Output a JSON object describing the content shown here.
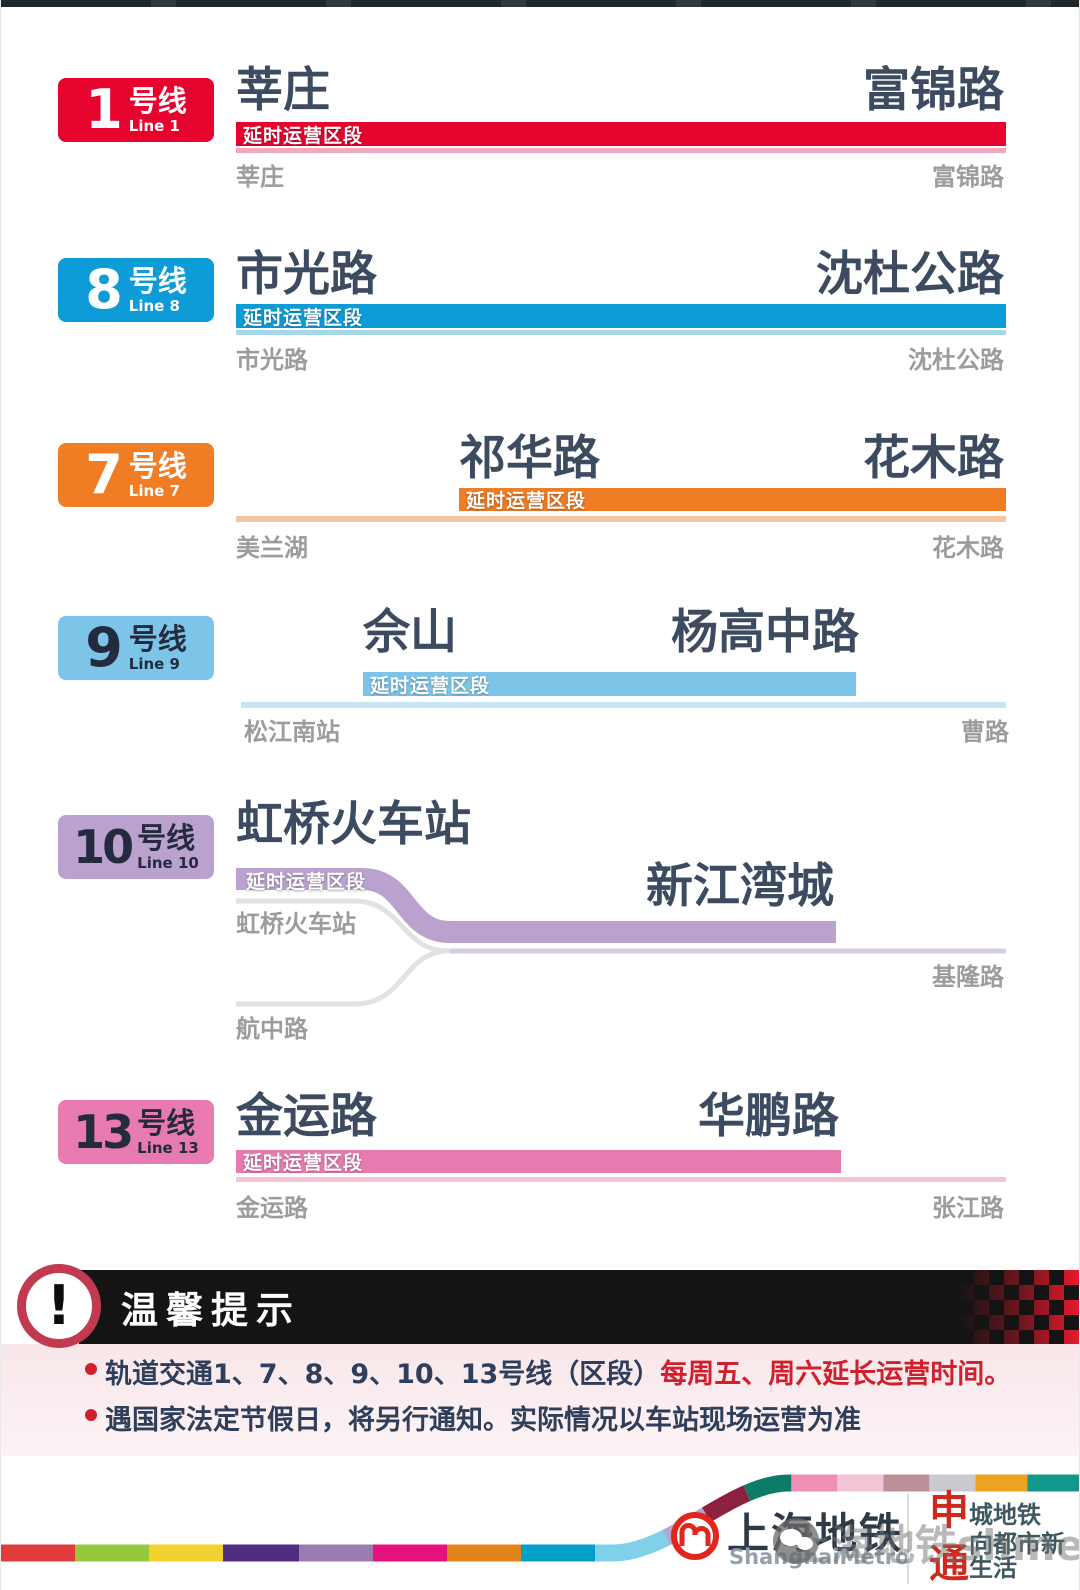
{
  "labels": {
    "section": "延时运营区段"
  },
  "lines": [
    {
      "number": "1",
      "suffix_cn": "号线",
      "name_en": "Line 1",
      "color": "#e6032e",
      "light_color": "#f2a9bc",
      "badge_text": "#ffffff",
      "section_start": "莘庄",
      "section_end": "富锦路",
      "route_start": "莘庄",
      "route_end": "富锦路"
    },
    {
      "number": "8",
      "suffix_cn": "号线",
      "name_en": "Line 8",
      "color": "#0d9cd8",
      "light_color": "#a6d8ec",
      "badge_text": "#ffffff",
      "section_start": "市光路",
      "section_end": "沈杜公路",
      "route_start": "市光路",
      "route_end": "沈杜公路"
    },
    {
      "number": "7",
      "suffix_cn": "号线",
      "name_en": "Line 7",
      "color": "#f07c24",
      "light_color": "#f3c5a1",
      "badge_text": "#ffffff",
      "section_start": "祁华路",
      "section_end": "花木路",
      "route_start": "美兰湖",
      "route_end": "花木路"
    },
    {
      "number": "9",
      "suffix_cn": "号线",
      "name_en": "Line 9",
      "color": "#7cc5e8",
      "light_color": "#c7e5f2",
      "badge_text": "#252b3f",
      "section_start": "佘山",
      "section_end": "杨高中路",
      "route_start": "松江南站",
      "route_end": "曹路"
    },
    {
      "number": "10",
      "suffix_cn": "号线",
      "name_en": "Line 10",
      "color": "#bba2ce",
      "light_color": "#d7cbe4",
      "branch_color": "#e2e2e2",
      "badge_text": "#252b3f",
      "section_start": "虹桥火车站",
      "section_end": "新江湾城",
      "route_start": "虹桥火车站",
      "branch_start": "航中路",
      "route_end": "基隆路"
    },
    {
      "number": "13",
      "suffix_cn": "号线",
      "name_en": "Line 13",
      "color": "#e77bb0",
      "light_color": "#f6c3da",
      "badge_text": "#252b3f",
      "section_start": "金运路",
      "section_end": "华鹏路",
      "route_start": "金运路",
      "route_end": "张江路"
    }
  ],
  "tips": {
    "icon_glyph": "!",
    "title": "温馨提示",
    "bullet1_prefix": "轨道交通1、7、8、9、10、13号线（区段）",
    "bullet1_highlight": "每周五、周六延长运营时间。",
    "bullet2": "遇国家法定节假日，将另行通知。实际情况以车站现场运营为准",
    "accent_red": "#d0202d",
    "text_navy": "#2f3e5a"
  },
  "footer": {
    "logo_cn": "上海地铁",
    "logo_en": "ShanghaiMetro",
    "logo_red": "#e3261d",
    "slogan1_accent": "申",
    "slogan1_rest": "城地铁",
    "slogan2_accent": "通",
    "slogan2_rest": "向都市新生活",
    "watermark": "上海地铁shmetro",
    "strip_segments": [
      {
        "color": "#e03a3c",
        "len": 74
      },
      {
        "color": "#96c83c",
        "len": 74
      },
      {
        "color": "#f2d22e",
        "len": 74
      },
      {
        "color": "#4f2d7f",
        "len": 76
      },
      {
        "color": "#9b7cb0",
        "len": 74
      },
      {
        "color": "#e4127d",
        "len": 74
      },
      {
        "color": "#e0841c",
        "len": 74
      },
      {
        "color": "#00a0c8",
        "len": 74
      },
      {
        "color": "#7fd0e8",
        "len": 74
      },
      {
        "color": "#b3a6d3",
        "len": 46
      },
      {
        "color": "#8c2041",
        "len": 46
      },
      {
        "color": "#0e7a68",
        "len": 46
      },
      {
        "color": "#ef8fb6",
        "len": 46
      },
      {
        "color": "#f3c3d6",
        "len": 46
      },
      {
        "color": "#bd8f96",
        "len": 46
      },
      {
        "color": "#c9c9cf",
        "len": 46
      },
      {
        "color": "#eda321",
        "len": 52
      },
      {
        "color": "#12988a",
        "len": 120
      }
    ]
  }
}
